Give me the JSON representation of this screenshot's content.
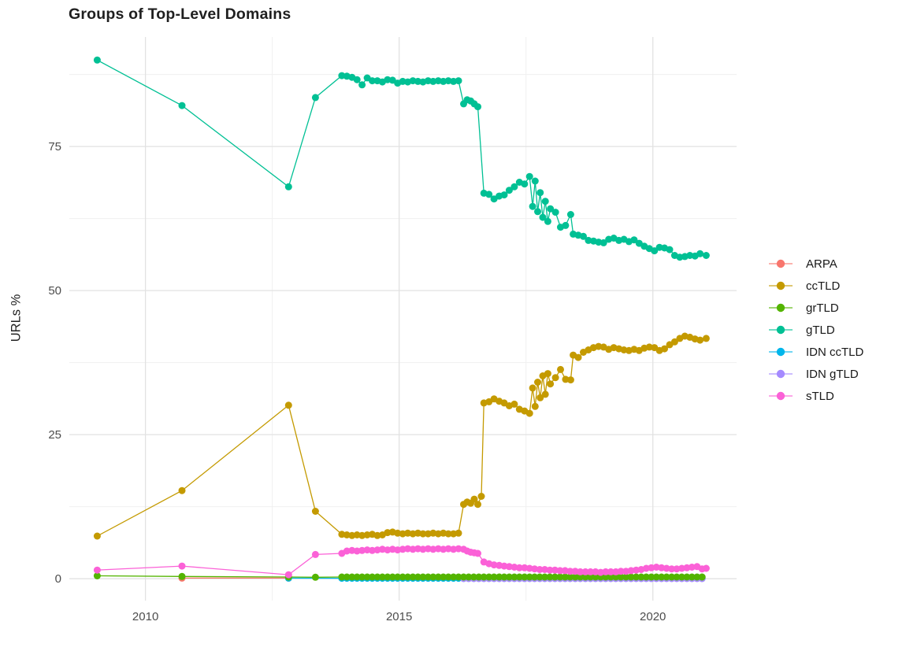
{
  "chart_data": {
    "type": "line",
    "title": "Groups of Top-Level Domains",
    "xlabel": "",
    "ylabel": "URLs %",
    "xlim": [
      2008.5,
      2021.65
    ],
    "ylim": [
      -3.8,
      94.0
    ],
    "x_ticks": [
      {
        "v": 2010,
        "label": "2010"
      },
      {
        "v": 2015,
        "label": "2015"
      },
      {
        "v": 2020,
        "label": "2020"
      }
    ],
    "y_ticks": [
      {
        "v": 0,
        "label": "0"
      },
      {
        "v": 25,
        "label": "25"
      },
      {
        "v": 50,
        "label": "50"
      },
      {
        "v": 75,
        "label": "75"
      }
    ],
    "x_minor_ticks": [
      2012.5,
      2017.5
    ],
    "y_minor_ticks": [
      12.5,
      37.5,
      62.5,
      87.5
    ],
    "grid": true,
    "legend_position": "right",
    "series": [
      {
        "name": "ARPA",
        "color": "#F8766D",
        "points": [
          [
            2010.72,
            0.1
          ],
          [
            2012.82,
            0.1
          ]
        ]
      },
      {
        "name": "ccTLD",
        "color": "#C49A00",
        "points": [
          [
            2009.05,
            7.4
          ],
          [
            2010.72,
            15.3
          ],
          [
            2012.82,
            30.1
          ],
          [
            2013.35,
            11.7
          ],
          [
            2013.87,
            7.7
          ],
          [
            2013.97,
            7.6
          ],
          [
            2014.07,
            7.5
          ],
          [
            2014.17,
            7.6
          ],
          [
            2014.27,
            7.5
          ],
          [
            2014.37,
            7.6
          ],
          [
            2014.47,
            7.7
          ],
          [
            2014.57,
            7.5
          ],
          [
            2014.67,
            7.6
          ],
          [
            2014.77,
            8.0
          ],
          [
            2014.87,
            8.1
          ],
          [
            2014.97,
            7.9
          ],
          [
            2015.07,
            7.8
          ],
          [
            2015.17,
            7.9
          ],
          [
            2015.27,
            7.8
          ],
          [
            2015.37,
            7.9
          ],
          [
            2015.47,
            7.8
          ],
          [
            2015.57,
            7.8
          ],
          [
            2015.67,
            7.9
          ],
          [
            2015.77,
            7.8
          ],
          [
            2015.87,
            7.9
          ],
          [
            2015.97,
            7.8
          ],
          [
            2016.07,
            7.8
          ],
          [
            2016.17,
            7.9
          ],
          [
            2016.27,
            12.9
          ],
          [
            2016.34,
            13.3
          ],
          [
            2016.41,
            13.1
          ],
          [
            2016.48,
            13.8
          ],
          [
            2016.55,
            12.9
          ],
          [
            2016.62,
            14.3
          ],
          [
            2016.67,
            30.5
          ],
          [
            2016.77,
            30.7
          ],
          [
            2016.87,
            31.2
          ],
          [
            2016.97,
            30.8
          ],
          [
            2017.07,
            30.5
          ],
          [
            2017.17,
            30.0
          ],
          [
            2017.27,
            30.3
          ],
          [
            2017.37,
            29.4
          ],
          [
            2017.47,
            29.1
          ],
          [
            2017.57,
            28.7
          ],
          [
            2017.63,
            33.1
          ],
          [
            2017.68,
            29.9
          ],
          [
            2017.73,
            34.1
          ],
          [
            2017.78,
            31.4
          ],
          [
            2017.83,
            35.2
          ],
          [
            2017.88,
            32.0
          ],
          [
            2017.93,
            35.6
          ],
          [
            2017.98,
            33.8
          ],
          [
            2018.08,
            34.9
          ],
          [
            2018.18,
            36.3
          ],
          [
            2018.28,
            34.6
          ],
          [
            2018.38,
            34.5
          ],
          [
            2018.43,
            38.8
          ],
          [
            2018.53,
            38.4
          ],
          [
            2018.63,
            39.3
          ],
          [
            2018.73,
            39.7
          ],
          [
            2018.83,
            40.1
          ],
          [
            2018.93,
            40.3
          ],
          [
            2019.03,
            40.2
          ],
          [
            2019.13,
            39.8
          ],
          [
            2019.23,
            40.1
          ],
          [
            2019.33,
            39.9
          ],
          [
            2019.43,
            39.7
          ],
          [
            2019.53,
            39.6
          ],
          [
            2019.63,
            39.8
          ],
          [
            2019.73,
            39.6
          ],
          [
            2019.83,
            40.0
          ],
          [
            2019.93,
            40.2
          ],
          [
            2020.03,
            40.1
          ],
          [
            2020.13,
            39.6
          ],
          [
            2020.23,
            39.9
          ],
          [
            2020.33,
            40.6
          ],
          [
            2020.43,
            41.1
          ],
          [
            2020.53,
            41.7
          ],
          [
            2020.63,
            42.1
          ],
          [
            2020.73,
            41.9
          ],
          [
            2020.83,
            41.6
          ],
          [
            2020.93,
            41.4
          ],
          [
            2021.05,
            41.7
          ]
        ]
      },
      {
        "name": "grTLD",
        "color": "#53B400",
        "points": [
          [
            2009.05,
            0.5
          ],
          [
            2010.72,
            0.4
          ],
          [
            2012.82,
            0.3
          ],
          [
            2013.35,
            0.25
          ]
        ],
        "flat": {
          "from": 2013.87,
          "to": 2021.05,
          "step": 0.1,
          "y": 0.3
        }
      },
      {
        "name": "gTLD",
        "color": "#00C094",
        "points": [
          [
            2009.05,
            90.0
          ],
          [
            2010.72,
            82.1
          ],
          [
            2012.82,
            68.0
          ],
          [
            2013.35,
            83.5
          ],
          [
            2013.87,
            87.3
          ],
          [
            2013.97,
            87.2
          ],
          [
            2014.07,
            87.0
          ],
          [
            2014.17,
            86.6
          ],
          [
            2014.27,
            85.7
          ],
          [
            2014.37,
            86.9
          ],
          [
            2014.47,
            86.4
          ],
          [
            2014.57,
            86.4
          ],
          [
            2014.67,
            86.2
          ],
          [
            2014.77,
            86.6
          ],
          [
            2014.87,
            86.5
          ],
          [
            2014.97,
            86.0
          ],
          [
            2015.07,
            86.3
          ],
          [
            2015.17,
            86.2
          ],
          [
            2015.27,
            86.4
          ],
          [
            2015.37,
            86.3
          ],
          [
            2015.47,
            86.2
          ],
          [
            2015.57,
            86.4
          ],
          [
            2015.67,
            86.3
          ],
          [
            2015.77,
            86.4
          ],
          [
            2015.87,
            86.3
          ],
          [
            2015.97,
            86.4
          ],
          [
            2016.07,
            86.3
          ],
          [
            2016.17,
            86.4
          ],
          [
            2016.27,
            82.4
          ],
          [
            2016.34,
            83.1
          ],
          [
            2016.41,
            82.9
          ],
          [
            2016.48,
            82.4
          ],
          [
            2016.55,
            81.9
          ],
          [
            2016.67,
            66.9
          ],
          [
            2016.77,
            66.7
          ],
          [
            2016.87,
            65.9
          ],
          [
            2016.97,
            66.4
          ],
          [
            2017.07,
            66.6
          ],
          [
            2017.17,
            67.4
          ],
          [
            2017.27,
            68.0
          ],
          [
            2017.37,
            68.8
          ],
          [
            2017.47,
            68.5
          ],
          [
            2017.57,
            69.8
          ],
          [
            2017.63,
            64.6
          ],
          [
            2017.68,
            69.0
          ],
          [
            2017.73,
            63.7
          ],
          [
            2017.78,
            67.0
          ],
          [
            2017.83,
            62.7
          ],
          [
            2017.88,
            65.5
          ],
          [
            2017.93,
            62.0
          ],
          [
            2017.98,
            64.2
          ],
          [
            2018.08,
            63.6
          ],
          [
            2018.18,
            61.0
          ],
          [
            2018.28,
            61.3
          ],
          [
            2018.38,
            63.2
          ],
          [
            2018.43,
            59.8
          ],
          [
            2018.53,
            59.6
          ],
          [
            2018.63,
            59.4
          ],
          [
            2018.73,
            58.7
          ],
          [
            2018.83,
            58.6
          ],
          [
            2018.93,
            58.4
          ],
          [
            2019.03,
            58.3
          ],
          [
            2019.13,
            58.9
          ],
          [
            2019.23,
            59.1
          ],
          [
            2019.33,
            58.7
          ],
          [
            2019.43,
            58.9
          ],
          [
            2019.53,
            58.5
          ],
          [
            2019.63,
            58.8
          ],
          [
            2019.73,
            58.2
          ],
          [
            2019.83,
            57.7
          ],
          [
            2019.93,
            57.3
          ],
          [
            2020.03,
            56.9
          ],
          [
            2020.13,
            57.5
          ],
          [
            2020.23,
            57.4
          ],
          [
            2020.33,
            57.1
          ],
          [
            2020.43,
            56.1
          ],
          [
            2020.53,
            55.8
          ],
          [
            2020.63,
            55.9
          ],
          [
            2020.73,
            56.1
          ],
          [
            2020.83,
            56.0
          ],
          [
            2020.93,
            56.4
          ],
          [
            2021.05,
            56.1
          ]
        ]
      },
      {
        "name": "IDN ccTLD",
        "color": "#00B6EB",
        "points": [
          [
            2012.82,
            0.1
          ]
        ],
        "flat": {
          "from": 2013.87,
          "to": 2021.05,
          "step": 0.1,
          "y": 0.08
        }
      },
      {
        "name": "IDN gTLD",
        "color": "#A58AFF",
        "points": [],
        "flat": {
          "from": 2016.27,
          "to": 2021.05,
          "step": 0.1,
          "y": 0.02
        }
      },
      {
        "name": "sTLD",
        "color": "#FB61D7",
        "points": [
          [
            2009.05,
            1.5
          ],
          [
            2010.72,
            2.2
          ],
          [
            2012.82,
            0.7
          ],
          [
            2013.35,
            4.2
          ],
          [
            2013.87,
            4.4
          ],
          [
            2013.97,
            4.8
          ],
          [
            2014.07,
            4.9
          ],
          [
            2014.17,
            4.8
          ],
          [
            2014.27,
            4.9
          ],
          [
            2014.37,
            5.0
          ],
          [
            2014.47,
            4.9
          ],
          [
            2014.57,
            5.0
          ],
          [
            2014.67,
            5.1
          ],
          [
            2014.77,
            5.0
          ],
          [
            2014.87,
            5.1
          ],
          [
            2014.97,
            5.0
          ],
          [
            2015.07,
            5.1
          ],
          [
            2015.17,
            5.2
          ],
          [
            2015.27,
            5.1
          ],
          [
            2015.37,
            5.2
          ],
          [
            2015.47,
            5.1
          ],
          [
            2015.57,
            5.2
          ],
          [
            2015.67,
            5.1
          ],
          [
            2015.77,
            5.2
          ],
          [
            2015.87,
            5.1
          ],
          [
            2015.97,
            5.2
          ],
          [
            2016.07,
            5.1
          ],
          [
            2016.17,
            5.2
          ],
          [
            2016.27,
            5.1
          ],
          [
            2016.34,
            4.8
          ],
          [
            2016.41,
            4.6
          ],
          [
            2016.48,
            4.5
          ],
          [
            2016.55,
            4.4
          ],
          [
            2016.67,
            2.9
          ],
          [
            2016.77,
            2.6
          ],
          [
            2016.87,
            2.4
          ],
          [
            2016.97,
            2.3
          ],
          [
            2017.07,
            2.2
          ],
          [
            2017.17,
            2.1
          ],
          [
            2017.27,
            2.0
          ],
          [
            2017.37,
            1.9
          ],
          [
            2017.47,
            1.9
          ],
          [
            2017.57,
            1.8
          ],
          [
            2017.67,
            1.7
          ],
          [
            2017.77,
            1.6
          ],
          [
            2017.87,
            1.6
          ],
          [
            2017.97,
            1.5
          ],
          [
            2018.07,
            1.5
          ],
          [
            2018.17,
            1.4
          ],
          [
            2018.27,
            1.4
          ],
          [
            2018.37,
            1.3
          ],
          [
            2018.47,
            1.3
          ],
          [
            2018.57,
            1.2
          ],
          [
            2018.67,
            1.2
          ],
          [
            2018.77,
            1.2
          ],
          [
            2018.87,
            1.2
          ],
          [
            2018.97,
            1.1
          ],
          [
            2019.07,
            1.2
          ],
          [
            2019.17,
            1.2
          ],
          [
            2019.27,
            1.2
          ],
          [
            2019.37,
            1.3
          ],
          [
            2019.47,
            1.3
          ],
          [
            2019.57,
            1.4
          ],
          [
            2019.67,
            1.5
          ],
          [
            2019.77,
            1.6
          ],
          [
            2019.87,
            1.8
          ],
          [
            2019.97,
            1.9
          ],
          [
            2020.07,
            2.0
          ],
          [
            2020.17,
            1.9
          ],
          [
            2020.27,
            1.8
          ],
          [
            2020.37,
            1.7
          ],
          [
            2020.47,
            1.7
          ],
          [
            2020.57,
            1.8
          ],
          [
            2020.67,
            1.9
          ],
          [
            2020.77,
            2.0
          ],
          [
            2020.87,
            2.1
          ],
          [
            2020.97,
            1.7
          ],
          [
            2021.05,
            1.8
          ]
        ]
      }
    ]
  }
}
